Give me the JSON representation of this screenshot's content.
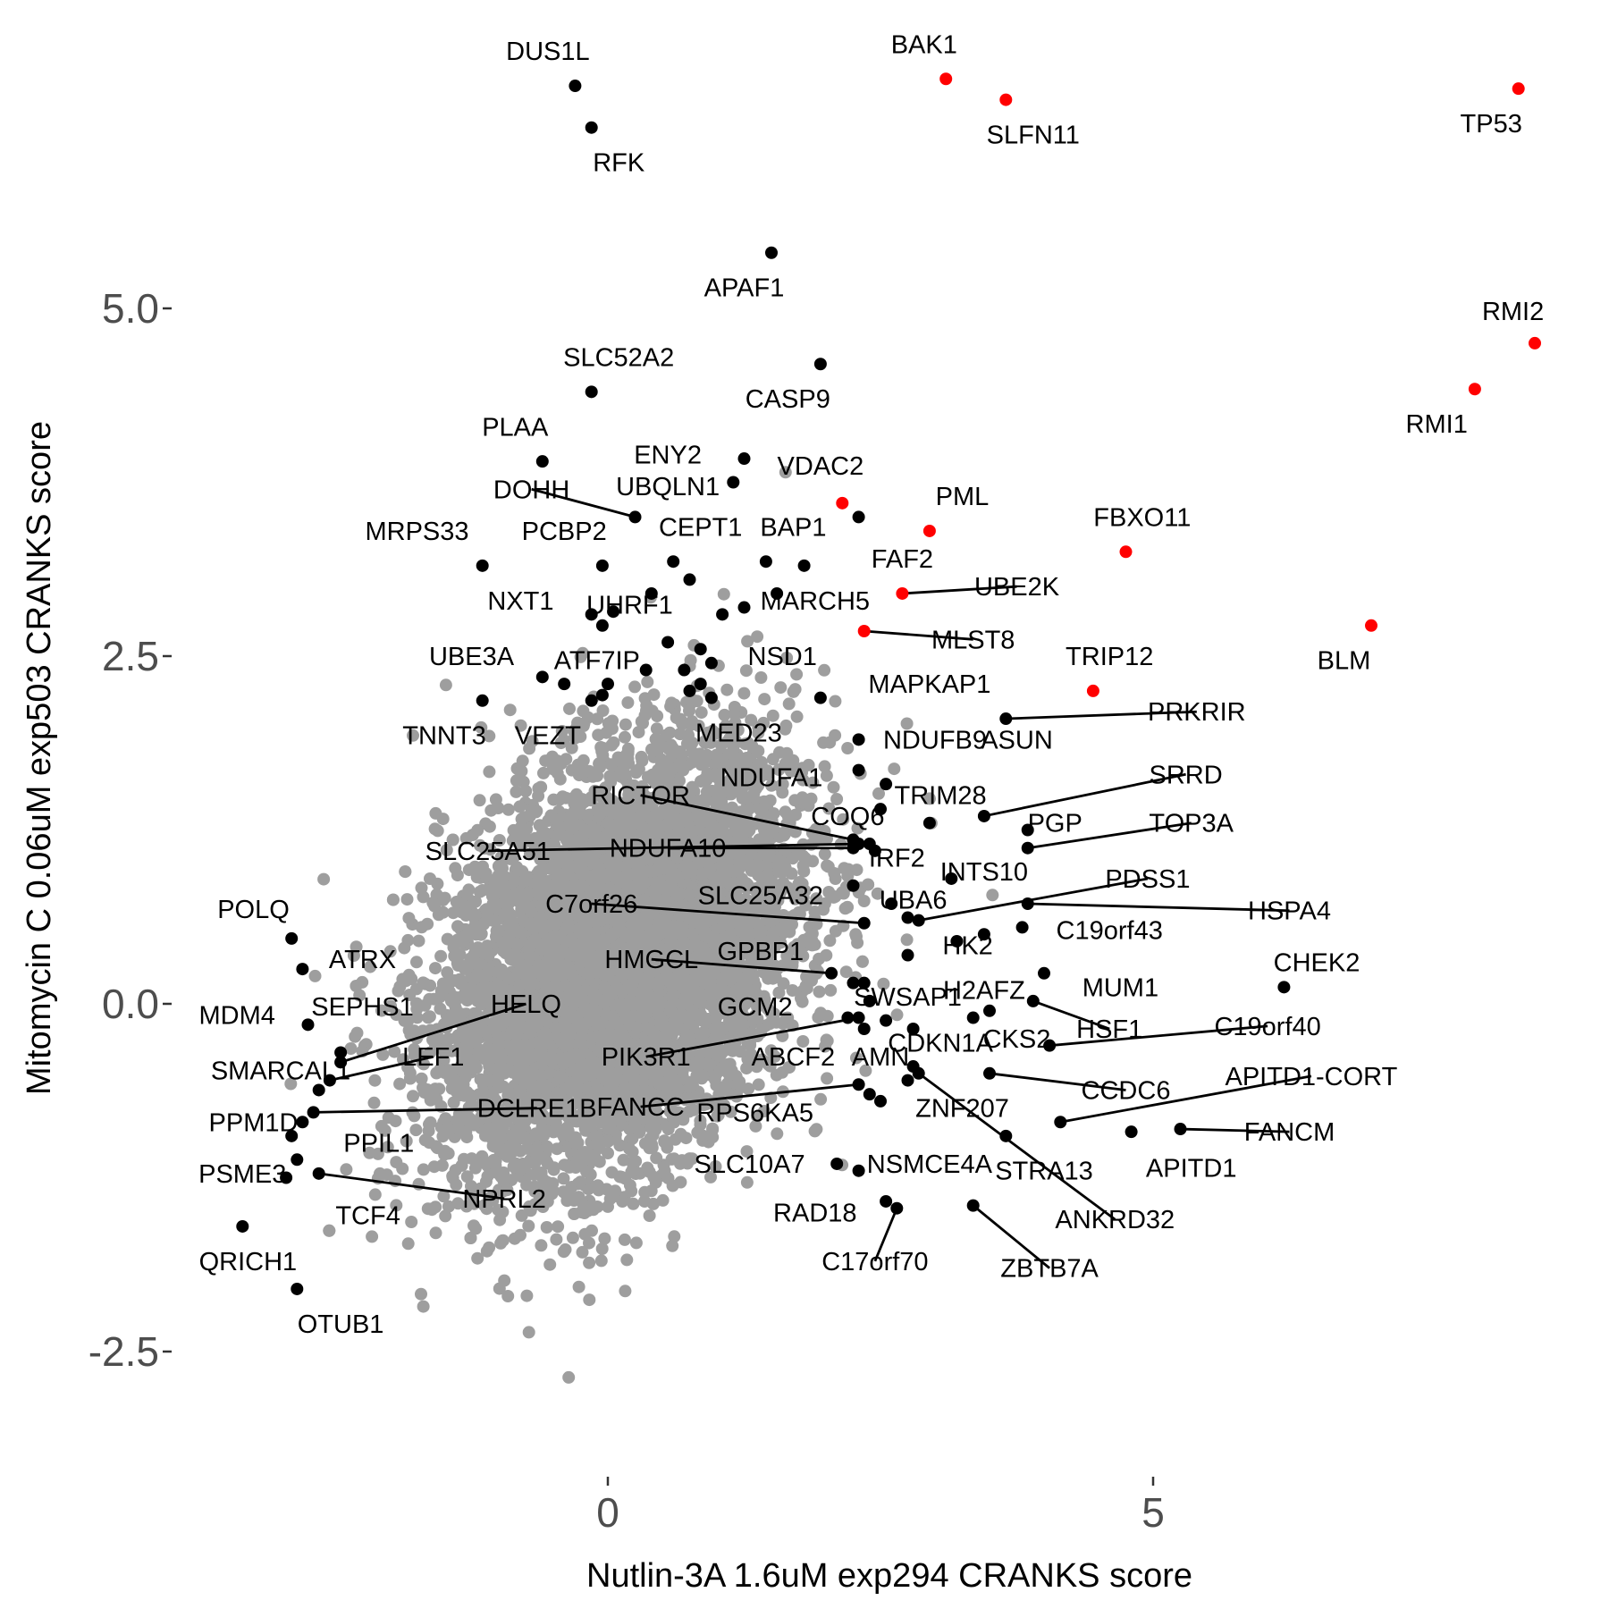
{
  "chart_data": {
    "type": "scatter",
    "xlabel": "Nutlin-3A 1.6uM exp294 CRANKS score",
    "ylabel": "Mitomycin C 0.06uM exp503 CRANKS score",
    "xlim": [
      -4.0,
      8.8
    ],
    "ylim": [
      -3.0,
      7.2
    ],
    "x_ticks": [
      {
        "value": 0,
        "label": "0"
      },
      {
        "value": 5,
        "label": "5"
      }
    ],
    "y_ticks": [
      {
        "value": 5.0,
        "label": "5.0-"
      },
      {
        "value": 2.5,
        "label": "2.5-"
      },
      {
        "value": 0.0,
        "label": "0.0-"
      },
      {
        "value": -2.5,
        "label": "-2.5-"
      }
    ],
    "grid": false,
    "legend": "none",
    "colors": {
      "background_points": "#9e9e9e",
      "labeled_points": "#000000",
      "highlighted_points": "#ff0000"
    },
    "background_cloud": {
      "description_count": 7000,
      "center": [
        0.1,
        0.3
      ],
      "sd": [
        0.8,
        0.75
      ]
    },
    "points": [
      {
        "gene": "DUS1L",
        "x": -0.3,
        "y": 6.6,
        "color": "black",
        "lx": -0.55,
        "ly": 6.85
      },
      {
        "gene": "RFK",
        "x": -0.15,
        "y": 6.3,
        "color": "black",
        "lx": 0.1,
        "ly": 6.05
      },
      {
        "gene": "BAK1",
        "x": 3.1,
        "y": 6.65,
        "color": "red",
        "lx": 2.9,
        "ly": 6.9
      },
      {
        "gene": "SLFN11",
        "x": 3.65,
        "y": 6.5,
        "color": "red",
        "lx": 3.9,
        "ly": 6.25
      },
      {
        "gene": "TP53",
        "x": 8.35,
        "y": 6.58,
        "color": "red",
        "lx": 8.1,
        "ly": 6.33
      },
      {
        "gene": "APAF1",
        "x": 1.5,
        "y": 5.4,
        "color": "black",
        "lx": 1.25,
        "ly": 5.15
      },
      {
        "gene": "RMI2",
        "x": 8.5,
        "y": 4.75,
        "color": "red",
        "lx": 8.3,
        "ly": 4.98
      },
      {
        "gene": "RMI1",
        "x": 7.95,
        "y": 4.42,
        "color": "red",
        "lx": 7.6,
        "ly": 4.17
      },
      {
        "gene": "SLC52A2",
        "x": -0.15,
        "y": 4.4,
        "color": "black",
        "lx": 0.1,
        "ly": 4.65
      },
      {
        "gene": "CASP9",
        "x": 1.95,
        "y": 4.6,
        "color": "black",
        "lx": 1.65,
        "ly": 4.35
      },
      {
        "gene": "PLAA",
        "x": -0.6,
        "y": 3.9,
        "color": "black",
        "lx": -0.85,
        "ly": 4.15
      },
      {
        "gene": "ENY2",
        "x": 1.25,
        "y": 3.92,
        "color": "black",
        "lx": 0.55,
        "ly": 3.95
      },
      {
        "gene": "DOHH",
        "x": 0.25,
        "y": 3.5,
        "color": "black",
        "lx": -0.7,
        "ly": 3.7,
        "line": true
      },
      {
        "gene": "UBQLN1",
        "x": 1.15,
        "y": 3.75,
        "color": "black",
        "lx": 0.55,
        "ly": 3.72
      },
      {
        "gene": "VDAC2",
        "x": 2.15,
        "y": 3.6,
        "color": "red",
        "lx": 1.95,
        "ly": 3.87
      },
      {
        "gene": "PML",
        "x": 2.95,
        "y": 3.4,
        "color": "red",
        "lx": 3.25,
        "ly": 3.65
      },
      {
        "gene": "FBXO11",
        "x": 4.75,
        "y": 3.25,
        "color": "red",
        "lx": 4.9,
        "ly": 3.5
      },
      {
        "gene": "MRPS33",
        "x": -1.15,
        "y": 3.15,
        "color": "black",
        "lx": -1.75,
        "ly": 3.4
      },
      {
        "gene": "PCBP2",
        "x": -0.05,
        "y": 3.15,
        "color": "black",
        "lx": -0.4,
        "ly": 3.4
      },
      {
        "gene": "CEPT1",
        "x": 0.6,
        "y": 3.18,
        "color": "black",
        "lx": 0.85,
        "ly": 3.43
      },
      {
        "gene": "BAP1",
        "x": 1.45,
        "y": 3.18,
        "color": "black",
        "lx": 1.7,
        "ly": 3.43
      },
      {
        "gene": "FAF2",
        "x": 2.7,
        "y": 2.95,
        "color": "red",
        "lx": 2.7,
        "ly": 3.2
      },
      {
        "gene": "UBE2K",
        "x": 2.7,
        "y": 2.95,
        "color": "red",
        "lx": 3.75,
        "ly": 3.0,
        "line": true,
        "hide_point": true
      },
      {
        "gene": "NXT1",
        "x": -0.15,
        "y": 2.8,
        "color": "black",
        "lx": -0.8,
        "ly": 2.9
      },
      {
        "gene": "UHRF1",
        "x": 0.05,
        "y": 2.82,
        "color": "black",
        "lx": 0.2,
        "ly": 2.87
      },
      {
        "gene": "MARCH5",
        "x": 1.55,
        "y": 2.95,
        "color": "black",
        "lx": 1.9,
        "ly": 2.9
      },
      {
        "gene": "MLST8",
        "x": 2.35,
        "y": 2.68,
        "color": "red",
        "lx": 3.35,
        "ly": 2.62,
        "line": true
      },
      {
        "gene": "TRIP12",
        "x": 4.45,
        "y": 2.25,
        "color": "red",
        "lx": 4.6,
        "ly": 2.5
      },
      {
        "gene": "BLM",
        "x": 7.0,
        "y": 2.72,
        "color": "red",
        "lx": 6.75,
        "ly": 2.47
      },
      {
        "gene": "UBE3A",
        "x": -0.6,
        "y": 2.35,
        "color": "black",
        "lx": -1.25,
        "ly": 2.5
      },
      {
        "gene": "ATF7IP",
        "x": -0.05,
        "y": 2.22,
        "color": "black",
        "lx": -0.1,
        "ly": 2.47
      },
      {
        "gene": "NSD1",
        "x": 0.95,
        "y": 2.45,
        "color": "black",
        "lx": 1.6,
        "ly": 2.5
      },
      {
        "gene": "MAPKAP1",
        "x": 1.95,
        "y": 2.2,
        "color": "black",
        "lx": 2.95,
        "ly": 2.3
      },
      {
        "gene": "PRKRIR",
        "x": 3.65,
        "y": 2.05,
        "color": "black",
        "lx": 5.4,
        "ly": 2.1,
        "line": true
      },
      {
        "gene": "TNNT3",
        "x": -1.15,
        "y": 2.18,
        "color": "black",
        "lx": -1.5,
        "ly": 1.93
      },
      {
        "gene": "VEZT",
        "x": -0.15,
        "y": 2.18,
        "color": "black",
        "lx": -0.55,
        "ly": 1.93
      },
      {
        "gene": "MED23",
        "x": 0.95,
        "y": 2.2,
        "color": "black",
        "lx": 1.2,
        "ly": 1.95
      },
      {
        "gene": "ASUN",
        "x": 2.3,
        "y": 1.9,
        "color": "black",
        "lx": 3.75,
        "ly": 1.9
      },
      {
        "gene": "NDUFB9",
        "x": 2.3,
        "y": 1.68,
        "color": "black",
        "lx": 3.0,
        "ly": 1.9
      },
      {
        "gene": "NDUFA1",
        "x": 2.55,
        "y": 1.58,
        "color": "black",
        "lx": 1.5,
        "ly": 1.63
      },
      {
        "gene": "SRRD",
        "x": 3.45,
        "y": 1.35,
        "color": "black",
        "lx": 5.3,
        "ly": 1.65,
        "line": true
      },
      {
        "gene": "TRIM28",
        "x": 2.95,
        "y": 1.3,
        "color": "black",
        "lx": 3.05,
        "ly": 1.5
      },
      {
        "gene": "RICTOR",
        "x": 2.25,
        "y": 1.18,
        "color": "black",
        "lx": 0.3,
        "ly": 1.5,
        "line": true
      },
      {
        "gene": "COQ6",
        "x": 2.4,
        "y": 1.15,
        "color": "black",
        "lx": 2.2,
        "ly": 1.35
      },
      {
        "gene": "PGP",
        "x": 3.85,
        "y": 1.25,
        "color": "black",
        "lx": 4.1,
        "ly": 1.3
      },
      {
        "gene": "TOP3A",
        "x": 3.85,
        "y": 1.12,
        "color": "black",
        "lx": 5.35,
        "ly": 1.3,
        "line": true
      },
      {
        "gene": "SLC25A51",
        "x": 2.3,
        "y": 1.15,
        "color": "black",
        "lx": -1.1,
        "ly": 1.1,
        "line": true
      },
      {
        "gene": "NDUFA10",
        "x": 2.25,
        "y": 1.12,
        "color": "black",
        "lx": 0.55,
        "ly": 1.12,
        "line": true
      },
      {
        "gene": "IRF2",
        "x": 2.45,
        "y": 1.1,
        "color": "black",
        "lx": 2.65,
        "ly": 1.05
      },
      {
        "gene": "INTS10",
        "x": 3.15,
        "y": 0.9,
        "color": "black",
        "lx": 3.45,
        "ly": 0.95
      },
      {
        "gene": "PDSS1",
        "x": 2.85,
        "y": 0.6,
        "color": "black",
        "lx": 4.95,
        "ly": 0.9,
        "line": true
      },
      {
        "gene": "UBA6",
        "x": 2.6,
        "y": 0.72,
        "color": "black",
        "lx": 2.8,
        "ly": 0.75
      },
      {
        "gene": "HSPA4",
        "x": 3.85,
        "y": 0.72,
        "color": "black",
        "lx": 6.25,
        "ly": 0.67,
        "line": true
      },
      {
        "gene": "C7orf26",
        "x": 2.35,
        "y": 0.58,
        "color": "black",
        "lx": -0.15,
        "ly": 0.72,
        "line": true
      },
      {
        "gene": "SLC25A32",
        "x": 2.35,
        "y": 0.58,
        "color": "black",
        "lx": 1.4,
        "ly": 0.78,
        "hide_point": true
      },
      {
        "gene": "C19orf43",
        "x": 3.8,
        "y": 0.55,
        "color": "black",
        "lx": 4.6,
        "ly": 0.53
      },
      {
        "gene": "HK2",
        "x": 3.45,
        "y": 0.5,
        "color": "black",
        "lx": 3.3,
        "ly": 0.42
      },
      {
        "gene": "HMGCL",
        "x": 2.05,
        "y": 0.22,
        "color": "black",
        "lx": 0.4,
        "ly": 0.32,
        "line": true
      },
      {
        "gene": "GPBP1",
        "x": 2.35,
        "y": 0.15,
        "color": "black",
        "lx": 1.4,
        "ly": 0.38
      },
      {
        "gene": "CHEK2",
        "x": 6.2,
        "y": 0.12,
        "color": "black",
        "lx": 6.5,
        "ly": 0.3
      },
      {
        "gene": "SWSAP1",
        "x": 2.25,
        "y": 0.15,
        "color": "black",
        "lx": 2.75,
        "ly": 0.05
      },
      {
        "gene": "H2AFZ",
        "x": 4.0,
        "y": 0.22,
        "color": "black",
        "lx": 3.45,
        "ly": 0.1
      },
      {
        "gene": "MUM1",
        "x": 4.0,
        "y": 0.22,
        "color": "black",
        "lx": 4.7,
        "ly": 0.12,
        "hide_point": true
      },
      {
        "gene": "GCM2",
        "x": 2.2,
        "y": -0.1,
        "color": "black",
        "lx": 1.35,
        "ly": -0.02
      },
      {
        "gene": "HSF1",
        "x": 3.9,
        "y": 0.02,
        "color": "black",
        "lx": 4.6,
        "ly": -0.18,
        "line": true
      },
      {
        "gene": "C19orf40",
        "x": 4.05,
        "y": -0.3,
        "color": "black",
        "lx": 6.05,
        "ly": -0.16,
        "line": true
      },
      {
        "gene": "PIK3R1",
        "x": 2.3,
        "y": -0.1,
        "color": "black",
        "lx": 0.35,
        "ly": -0.38,
        "line": true
      },
      {
        "gene": "ABCF2",
        "x": 2.35,
        "y": -0.18,
        "color": "black",
        "lx": 1.7,
        "ly": -0.38
      },
      {
        "gene": "CDKN1A",
        "x": 2.8,
        "y": -0.18,
        "color": "black",
        "lx": 3.05,
        "ly": -0.28
      },
      {
        "gene": "CKS2",
        "x": 3.5,
        "y": -0.05,
        "color": "black",
        "lx": 3.75,
        "ly": -0.25
      },
      {
        "gene": "AMN",
        "x": 2.75,
        "y": -0.55,
        "color": "black",
        "lx": 2.5,
        "ly": -0.38
      },
      {
        "gene": "CCDC6",
        "x": 3.5,
        "y": -0.5,
        "color": "black",
        "lx": 4.75,
        "ly": -0.62,
        "line": true
      },
      {
        "gene": "APITD1-CORT",
        "x": 4.15,
        "y": -0.85,
        "color": "black",
        "lx": 6.45,
        "ly": -0.52,
        "line": true
      },
      {
        "gene": "FANCC",
        "x": 2.3,
        "y": -0.58,
        "color": "black",
        "lx": 0.3,
        "ly": -0.74,
        "line": true
      },
      {
        "gene": "RPS6KA5",
        "x": 2.4,
        "y": -0.65,
        "color": "black",
        "lx": 1.35,
        "ly": -0.78
      },
      {
        "gene": "ZNF207",
        "x": 2.8,
        "y": -0.45,
        "color": "black",
        "lx": 3.25,
        "ly": -0.75
      },
      {
        "gene": "FANCM",
        "x": 5.25,
        "y": -0.9,
        "color": "black",
        "lx": 6.25,
        "ly": -0.92,
        "line": true
      },
      {
        "gene": "APITD1",
        "x": 4.8,
        "y": -0.92,
        "color": "black",
        "lx": 5.35,
        "ly": -1.18
      },
      {
        "gene": "STRA13",
        "x": 3.65,
        "y": -0.95,
        "color": "black",
        "lx": 4.0,
        "ly": -1.2
      },
      {
        "gene": "SLC10A7",
        "x": 2.1,
        "y": -1.15,
        "color": "black",
        "lx": 1.3,
        "ly": -1.15
      },
      {
        "gene": "NSMCE4A",
        "x": 2.3,
        "y": -1.2,
        "color": "black",
        "lx": 2.95,
        "ly": -1.15
      },
      {
        "gene": "ANKRD32",
        "x": 2.85,
        "y": -0.5,
        "color": "black",
        "lx": 4.65,
        "ly": -1.55,
        "line": true
      },
      {
        "gene": "RAD18",
        "x": 2.55,
        "y": -1.42,
        "color": "black",
        "lx": 1.9,
        "ly": -1.5
      },
      {
        "gene": "ZBTB7A",
        "x": 3.35,
        "y": -1.45,
        "color": "black",
        "lx": 4.05,
        "ly": -1.9,
        "line": true
      },
      {
        "gene": "C17orf70",
        "x": 2.65,
        "y": -1.47,
        "color": "black",
        "lx": 2.45,
        "ly": -1.85,
        "line": true
      },
      {
        "gene": "POLQ",
        "x": -2.9,
        "y": 0.47,
        "color": "black",
        "lx": -3.25,
        "ly": 0.68
      },
      {
        "gene": "ATRX",
        "x": -2.8,
        "y": 0.25,
        "color": "black",
        "lx": -2.25,
        "ly": 0.32
      },
      {
        "gene": "MDM4",
        "x": -2.75,
        "y": -0.15,
        "color": "black",
        "lx": -3.4,
        "ly": -0.08
      },
      {
        "gene": "SEPHS1",
        "x": -2.45,
        "y": -0.35,
        "color": "black",
        "lx": -2.25,
        "ly": -0.02
      },
      {
        "gene": "HELQ",
        "x": -2.45,
        "y": -0.42,
        "color": "black",
        "lx": -0.75,
        "ly": 0.0,
        "line": true
      },
      {
        "gene": "LEF1",
        "x": -2.55,
        "y": -0.55,
        "color": "black",
        "lx": -1.6,
        "ly": -0.38,
        "line": true
      },
      {
        "gene": "SMARCAL1",
        "x": -2.65,
        "y": -0.62,
        "color": "black",
        "lx": -3.0,
        "ly": -0.48
      },
      {
        "gene": "PPM1D",
        "x": -2.8,
        "y": -0.85,
        "color": "black",
        "lx": -3.25,
        "ly": -0.85
      },
      {
        "gene": "DCLRE1B",
        "x": -2.7,
        "y": -0.78,
        "color": "black",
        "lx": -0.65,
        "ly": -0.75,
        "line": true
      },
      {
        "gene": "PPIL1",
        "x": -2.9,
        "y": -0.95,
        "color": "black",
        "lx": -2.1,
        "ly": -1.0
      },
      {
        "gene": "PSME3",
        "x": -2.85,
        "y": -1.12,
        "color": "black",
        "lx": -3.35,
        "ly": -1.22
      },
      {
        "gene": "NPRL2",
        "x": -2.65,
        "y": -1.22,
        "color": "black",
        "lx": -0.95,
        "ly": -1.4,
        "line": true
      },
      {
        "gene": "TCF4",
        "x": -2.95,
        "y": -1.25,
        "color": "black",
        "lx": -2.2,
        "ly": -1.52
      },
      {
        "gene": "QRICH1",
        "x": -3.35,
        "y": -1.6,
        "color": "black",
        "lx": -3.3,
        "ly": -1.85
      },
      {
        "gene": "OTUB1",
        "x": -2.85,
        "y": -2.05,
        "color": "black",
        "lx": -2.45,
        "ly": -2.3
      }
    ],
    "extra_points": [
      {
        "x": 1.8,
        "y": 3.15,
        "color": "black"
      },
      {
        "x": 0.75,
        "y": 3.05,
        "color": "black"
      },
      {
        "x": 0.4,
        "y": 2.95,
        "color": "black"
      },
      {
        "x": -0.05,
        "y": 2.72,
        "color": "black"
      },
      {
        "x": 1.05,
        "y": 2.8,
        "color": "black"
      },
      {
        "x": 1.25,
        "y": 2.85,
        "color": "black"
      },
      {
        "x": 0.55,
        "y": 2.6,
        "color": "black"
      },
      {
        "x": 0.85,
        "y": 2.55,
        "color": "black"
      },
      {
        "x": 0.7,
        "y": 2.4,
        "color": "black"
      },
      {
        "x": 0.85,
        "y": 2.3,
        "color": "black"
      },
      {
        "x": 0.35,
        "y": 2.4,
        "color": "black"
      },
      {
        "x": 0.0,
        "y": 2.3,
        "color": "black"
      },
      {
        "x": -0.4,
        "y": 2.3,
        "color": "black"
      },
      {
        "x": 0.75,
        "y": 2.25,
        "color": "black"
      },
      {
        "x": 2.3,
        "y": 3.5,
        "color": "black"
      },
      {
        "x": 2.5,
        "y": 1.4,
        "color": "black"
      },
      {
        "x": 2.25,
        "y": 0.85,
        "color": "black"
      },
      {
        "x": 2.75,
        "y": 0.62,
        "color": "black"
      },
      {
        "x": 2.75,
        "y": 0.35,
        "color": "black"
      },
      {
        "x": 3.2,
        "y": 0.45,
        "color": "black"
      },
      {
        "x": 2.4,
        "y": 0.02,
        "color": "black"
      },
      {
        "x": 2.55,
        "y": -0.12,
        "color": "black"
      },
      {
        "x": 3.35,
        "y": -0.1,
        "color": "black"
      },
      {
        "x": 2.5,
        "y": -0.7,
        "color": "black"
      }
    ]
  }
}
